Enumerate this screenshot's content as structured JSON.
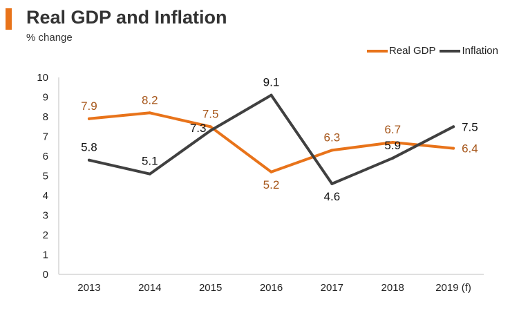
{
  "header": {
    "title": "Real GDP and Inflation",
    "subtitle": "% change",
    "accent_color": "#E8731A"
  },
  "chart_data": {
    "type": "line",
    "title": "Real GDP and Inflation",
    "subtitle": "% change",
    "xlabel": "",
    "ylabel": "",
    "categories": [
      "2013",
      "2014",
      "2015",
      "2016",
      "2017",
      "2018",
      "2019 (f)"
    ],
    "ylim": [
      0,
      10
    ],
    "yticks": [
      "0",
      "1",
      "2",
      "3",
      "4",
      "5",
      "6",
      "7",
      "8",
      "9",
      "10"
    ],
    "grid": false,
    "legend_position": "top-right",
    "series": [
      {
        "name": "Real GDP",
        "color": "#E8731A",
        "label_color": "#A6561A",
        "values": [
          7.9,
          8.2,
          7.5,
          5.2,
          6.3,
          6.7,
          6.4
        ],
        "labels": [
          "7.9",
          "8.2",
          "7.5",
          "5.2",
          "6.3",
          "6.7",
          "6.4"
        ]
      },
      {
        "name": "Inflation",
        "color": "#404040",
        "label_color": "#111111",
        "values": [
          5.8,
          5.1,
          7.3,
          9.1,
          4.6,
          5.9,
          7.5
        ],
        "labels": [
          "5.8",
          "5.1",
          "7.3",
          "9.1",
          "4.6",
          "5.9",
          "7.5"
        ]
      }
    ]
  }
}
